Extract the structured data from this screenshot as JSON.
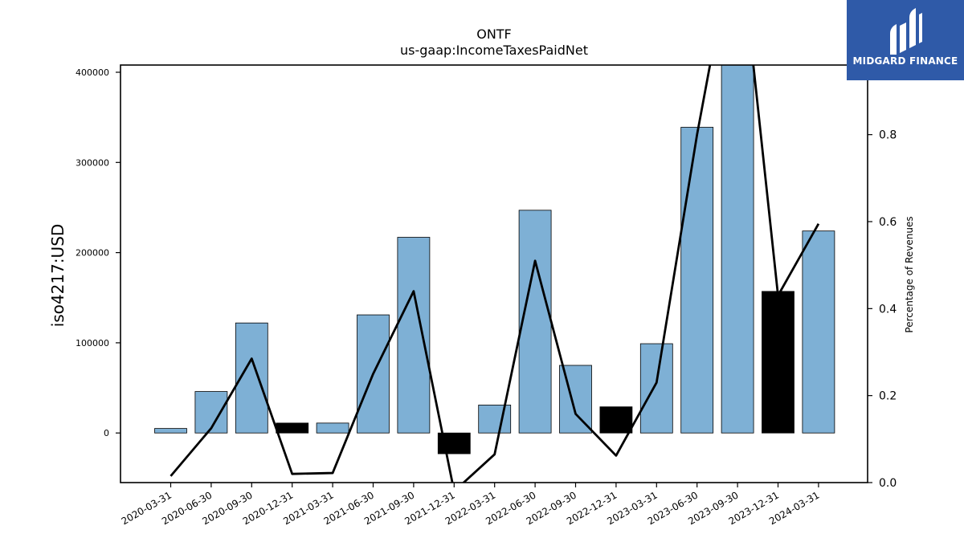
{
  "chart_data": {
    "type": "bar",
    "title": "ONTF",
    "subtitle": "us-gaap:IncomeTaxesPaidNet",
    "ylabel": "iso4217:USD",
    "y2label": "Percentage of Revenues",
    "categories": [
      "2020-03-31",
      "2020-06-30",
      "2020-09-30",
      "2020-12-31",
      "2021-03-31",
      "2021-06-30",
      "2021-09-30",
      "2021-12-31",
      "2022-03-31",
      "2022-06-30",
      "2022-09-30",
      "2022-12-31",
      "2023-03-31",
      "2023-06-30",
      "2023-09-30",
      "2023-12-31",
      "2024-03-31"
    ],
    "values": [
      5000,
      46000,
      122000,
      11000,
      11000,
      131000,
      217000,
      -23000,
      31000,
      247000,
      75000,
      29000,
      99000,
      339000,
      411000,
      157000,
      224000
    ],
    "bar_colors": [
      "#7eb0d5",
      "#7eb0d5",
      "#7eb0d5",
      "#000000",
      "#7eb0d5",
      "#7eb0d5",
      "#7eb0d5",
      "#000000",
      "#7eb0d5",
      "#7eb0d5",
      "#7eb0d5",
      "#000000",
      "#7eb0d5",
      "#7eb0d5",
      "#7eb0d5",
      "#000000",
      "#7eb0d5"
    ],
    "line_values": [
      0.015,
      0.125,
      0.285,
      0.02,
      0.022,
      0.25,
      0.44,
      -0.02,
      0.065,
      0.51,
      0.158,
      0.062,
      0.23,
      0.8,
      1.3,
      0.43,
      0.595
    ],
    "ylim": [
      -55000,
      408000
    ],
    "y2lim": [
      0.0,
      0.96
    ],
    "yticks": [
      0,
      100000,
      200000,
      300000,
      400000
    ],
    "y2ticks": [
      "0.0",
      "0.2",
      "0.4",
      "0.6",
      "0.8"
    ],
    "line_color": "#000000",
    "grid": false
  },
  "logo": {
    "text": "MIDGARD FINANCE",
    "color": "#2f5aa8"
  }
}
